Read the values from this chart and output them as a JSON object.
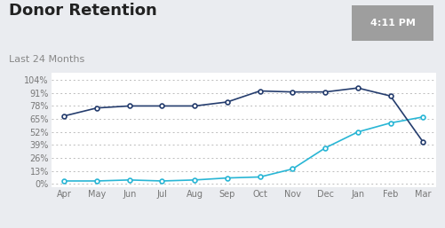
{
  "title": "Donor Retention",
  "subtitle": "Last 24 Months",
  "timestamp": "4:11 PM",
  "months": [
    "Apr",
    "May",
    "Jun",
    "Jul",
    "Aug",
    "Sep",
    "Oct",
    "Nov",
    "Dec",
    "Jan",
    "Feb",
    "Mar"
  ],
  "previous_year": [
    3,
    3,
    4,
    3,
    4,
    6,
    7,
    15,
    36,
    52,
    61,
    67
  ],
  "current_year": [
    68,
    76,
    78,
    78,
    78,
    82,
    93,
    92,
    92,
    96,
    88,
    42
  ],
  "prev_color": "#29b6d5",
  "curr_color": "#253d6e",
  "yticks": [
    0,
    13,
    26,
    39,
    52,
    65,
    78,
    91,
    104
  ],
  "ylabels": [
    "0%",
    "13%",
    "26%",
    "39%",
    "52%",
    "65%",
    "78%",
    "91%",
    "104%"
  ],
  "bg_color": "#eaecf0",
  "plot_bg": "#ffffff",
  "title_fontsize": 13,
  "subtitle_fontsize": 8,
  "tick_fontsize": 7,
  "legend_fontsize": 7.5
}
